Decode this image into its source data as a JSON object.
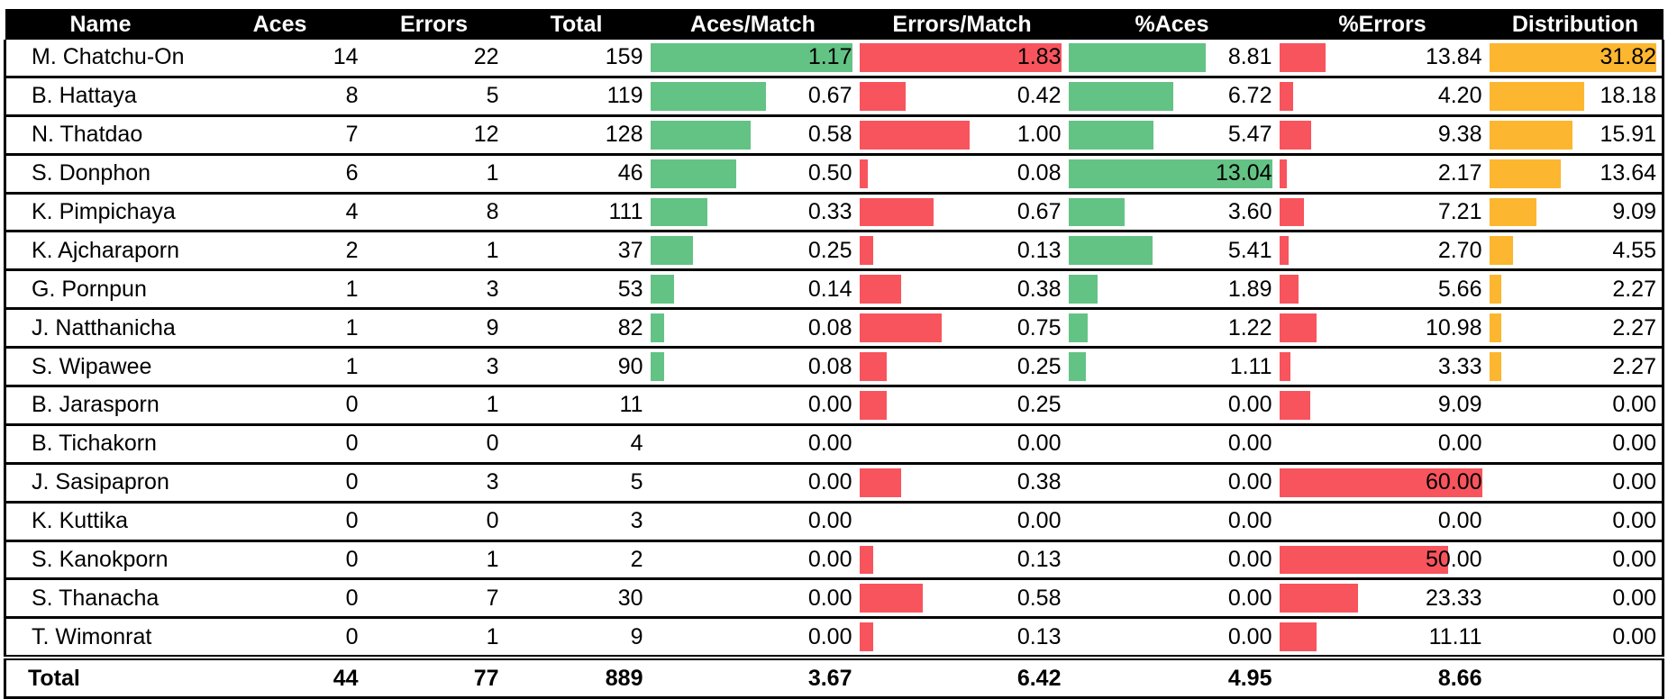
{
  "colors": {
    "aces_bar": "#63c384",
    "errors_bar": "#f8545d",
    "distribution_bar": "#fcb62f",
    "header_bg": "#000000"
  },
  "table": {
    "headers": [
      "Name",
      "Aces",
      "Errors",
      "Total",
      "Aces/Match",
      "Errors/Match",
      "%Aces",
      "%Errors",
      "Distribution"
    ],
    "rows": [
      [
        "M. Chatchu-On",
        "14",
        "22",
        "159",
        "1.17",
        "1.83",
        "8.81",
        "13.84",
        "31.82"
      ],
      [
        "B. Hattaya",
        "8",
        "5",
        "119",
        "0.67",
        "0.42",
        "6.72",
        "4.20",
        "18.18"
      ],
      [
        "N. Thatdao",
        "7",
        "12",
        "128",
        "0.58",
        "1.00",
        "5.47",
        "9.38",
        "15.91"
      ],
      [
        "S. Donphon",
        "6",
        "1",
        "46",
        "0.50",
        "0.08",
        "13.04",
        "2.17",
        "13.64"
      ],
      [
        "K. Pimpichaya",
        "4",
        "8",
        "111",
        "0.33",
        "0.67",
        "3.60",
        "7.21",
        "9.09"
      ],
      [
        "K. Ajcharaporn",
        "2",
        "1",
        "37",
        "0.25",
        "0.13",
        "5.41",
        "2.70",
        "4.55"
      ],
      [
        "G. Pornpun",
        "1",
        "3",
        "53",
        "0.14",
        "0.38",
        "1.89",
        "5.66",
        "2.27"
      ],
      [
        "J. Natthanicha",
        "1",
        "9",
        "82",
        "0.08",
        "0.75",
        "1.22",
        "10.98",
        "2.27"
      ],
      [
        "S. Wipawee",
        "1",
        "3",
        "90",
        "0.08",
        "0.25",
        "1.11",
        "3.33",
        "2.27"
      ],
      [
        "B. Jarasporn",
        "0",
        "1",
        "11",
        "0.00",
        "0.25",
        "0.00",
        "9.09",
        "0.00"
      ],
      [
        "B. Tichakorn",
        "0",
        "0",
        "4",
        "0.00",
        "0.00",
        "0.00",
        "0.00",
        "0.00"
      ],
      [
        "J. Sasipapron",
        "0",
        "3",
        "5",
        "0.00",
        "0.38",
        "0.00",
        "60.00",
        "0.00"
      ],
      [
        "K. Kuttika",
        "0",
        "0",
        "3",
        "0.00",
        "0.00",
        "0.00",
        "0.00",
        "0.00"
      ],
      [
        "S. Kanokporn",
        "0",
        "1",
        "2",
        "0.00",
        "0.13",
        "0.00",
        "50.00",
        "0.00"
      ],
      [
        "S. Thanacha",
        "0",
        "7",
        "30",
        "0.00",
        "0.58",
        "0.00",
        "23.33",
        "0.00"
      ],
      [
        "T. Wimonrat",
        "0",
        "1",
        "9",
        "0.00",
        "0.13",
        "0.00",
        "11.11",
        "0.00"
      ]
    ],
    "totals": [
      "Total",
      "44",
      "77",
      "889",
      "3.67",
      "6.42",
      "4.95",
      "8.66",
      ""
    ]
  }
}
